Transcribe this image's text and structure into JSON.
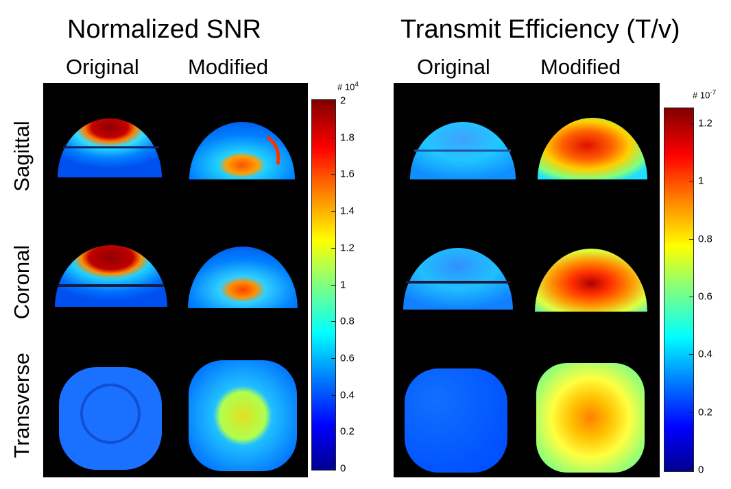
{
  "chart_data": [
    {
      "type": "heatmap",
      "title": "Normalized SNR",
      "columns": [
        "Original",
        "Modified"
      ],
      "rows": [
        "Sagittal",
        "Coronal",
        "Transverse"
      ],
      "colorbar": {
        "ticks": [
          "0",
          "0.2",
          "0.4",
          "0.6",
          "0.8",
          "1",
          "1.2",
          "1.4",
          "1.6",
          "1.8",
          "2"
        ],
        "tick_values": [
          0,
          0.2,
          0.4,
          0.6,
          0.8,
          1.0,
          1.2,
          1.4,
          1.6,
          1.8,
          2.0
        ],
        "range": [
          0,
          2
        ],
        "exponent_prefix": "# 10",
        "exponent": "4"
      }
    },
    {
      "type": "heatmap",
      "title": "Transmit Efficiency (T/v)",
      "columns": [
        "Original",
        "Modified"
      ],
      "rows": [
        "Sagittal",
        "Coronal",
        "Transverse"
      ],
      "colorbar": {
        "ticks": [
          "0",
          "0.2",
          "0.4",
          "0.6",
          "0.8",
          "1",
          "1.2"
        ],
        "tick_values": [
          0,
          0.2,
          0.4,
          0.6,
          0.8,
          1.0,
          1.2
        ],
        "range": [
          0,
          1.25
        ],
        "exponent_prefix": "# 10",
        "exponent": "-7"
      }
    }
  ]
}
